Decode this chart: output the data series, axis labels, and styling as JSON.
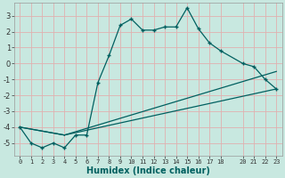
{
  "xlabel": "Humidex (Indice chaleur)",
  "background_color": "#c8e8e0",
  "grid_color": "#d0e8e0",
  "line_color": "#006060",
  "xlim": [
    -0.5,
    23.5
  ],
  "ylim": [
    -5.8,
    3.8
  ],
  "yticks": [
    -5,
    -4,
    -3,
    -2,
    -1,
    0,
    1,
    2,
    3
  ],
  "xticks": [
    0,
    1,
    2,
    3,
    4,
    5,
    6,
    7,
    8,
    9,
    10,
    11,
    12,
    13,
    14,
    15,
    16,
    17,
    18,
    20,
    21,
    22,
    23
  ],
  "series": [
    {
      "x": [
        0,
        1,
        2,
        3,
        4,
        5,
        6,
        7,
        8,
        9,
        10,
        11,
        12,
        13,
        14,
        15,
        16,
        17,
        18,
        20,
        21,
        22,
        23
      ],
      "y": [
        -4.0,
        -5.0,
        -5.3,
        -5.0,
        -5.3,
        -4.5,
        -4.5,
        -1.2,
        0.5,
        2.4,
        2.8,
        2.1,
        2.1,
        2.3,
        2.3,
        3.5,
        2.2,
        1.3,
        0.8,
        0.0,
        -0.2,
        -1.0,
        -1.6
      ]
    },
    {
      "x": [
        4,
        23
      ],
      "y": [
        -4.5,
        -1.6
      ]
    },
    {
      "x": [
        4,
        23
      ],
      "y": [
        -4.5,
        -0.5
      ]
    }
  ]
}
